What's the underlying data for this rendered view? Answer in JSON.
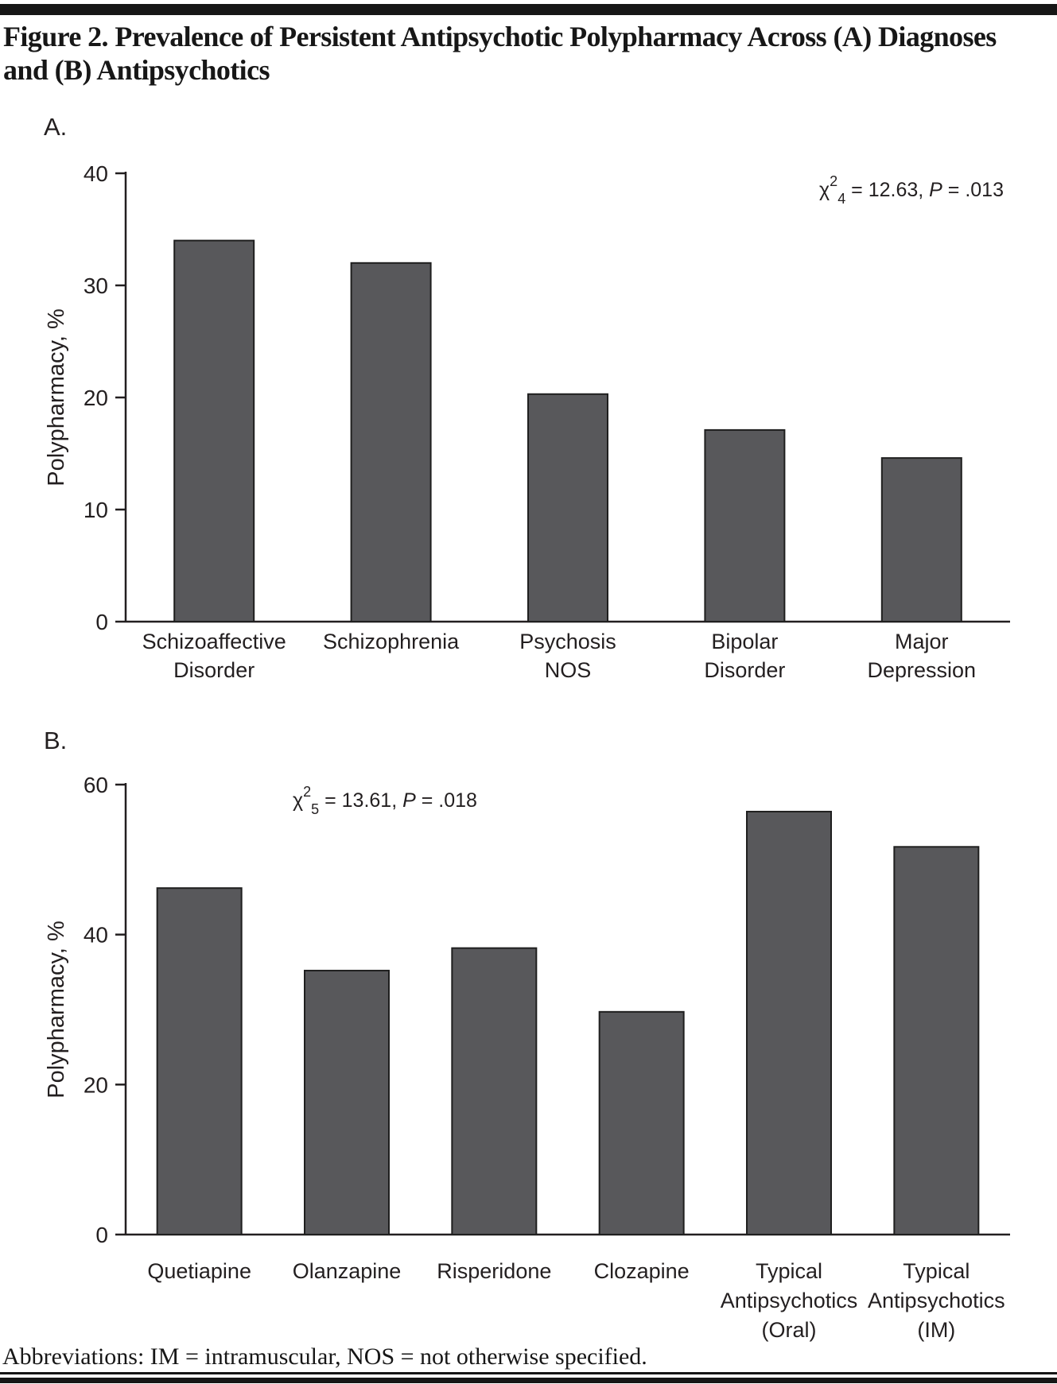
{
  "figure": {
    "title_line1": "Figure 2. Prevalence of Persistent Antipsychotic Polypharmacy Across (A) Diagnoses",
    "title_line2": "and (B) Antipsychotics",
    "footnote": "Abbreviations: IM = intramuscular, NOS = not otherwise specified."
  },
  "chart_data": [
    {
      "type": "bar",
      "panel_label": "A.",
      "categories": [
        "Schizoaffective\nDisorder",
        "Schizophrenia",
        "Psychosis\nNOS",
        "Bipolar\nDisorder",
        "Major\nDepression"
      ],
      "values": [
        34.0,
        32.0,
        20.3,
        17.1,
        14.6
      ],
      "xlabel": "",
      "ylabel": "Polypharmacy, %",
      "ylim": [
        0,
        40
      ],
      "yticks": [
        0,
        10,
        20,
        30,
        40
      ],
      "grid": false,
      "legend": false,
      "bar_color": "#58585b",
      "annotation": {
        "chi": "χ",
        "sup": "2",
        "sub": "4",
        "mid": " = 12.63, ",
        "p": "P",
        "tail": " = .013",
        "text": "χ2 4 = 12.63, P = .013"
      }
    },
    {
      "type": "bar",
      "panel_label": "B.",
      "categories": [
        "Quetiapine",
        "Olanzapine",
        "Risperidone",
        "Clozapine",
        "Typical\nAntipsychotics\n(Oral)",
        "Typical\nAntipsychotics\n(IM)"
      ],
      "values": [
        46.2,
        35.2,
        38.2,
        29.7,
        56.4,
        51.7
      ],
      "xlabel": "",
      "ylabel": "Polypharmacy, %",
      "ylim": [
        0,
        60
      ],
      "yticks": [
        0,
        20,
        40,
        60
      ],
      "grid": false,
      "legend": false,
      "bar_color": "#58585b",
      "annotation": {
        "chi": "χ",
        "sup": "2",
        "sub": "5",
        "mid": " = 13.61, ",
        "p": "P",
        "tail": " = .018",
        "text": "χ2 5 = 13.61, P = .018"
      }
    }
  ]
}
